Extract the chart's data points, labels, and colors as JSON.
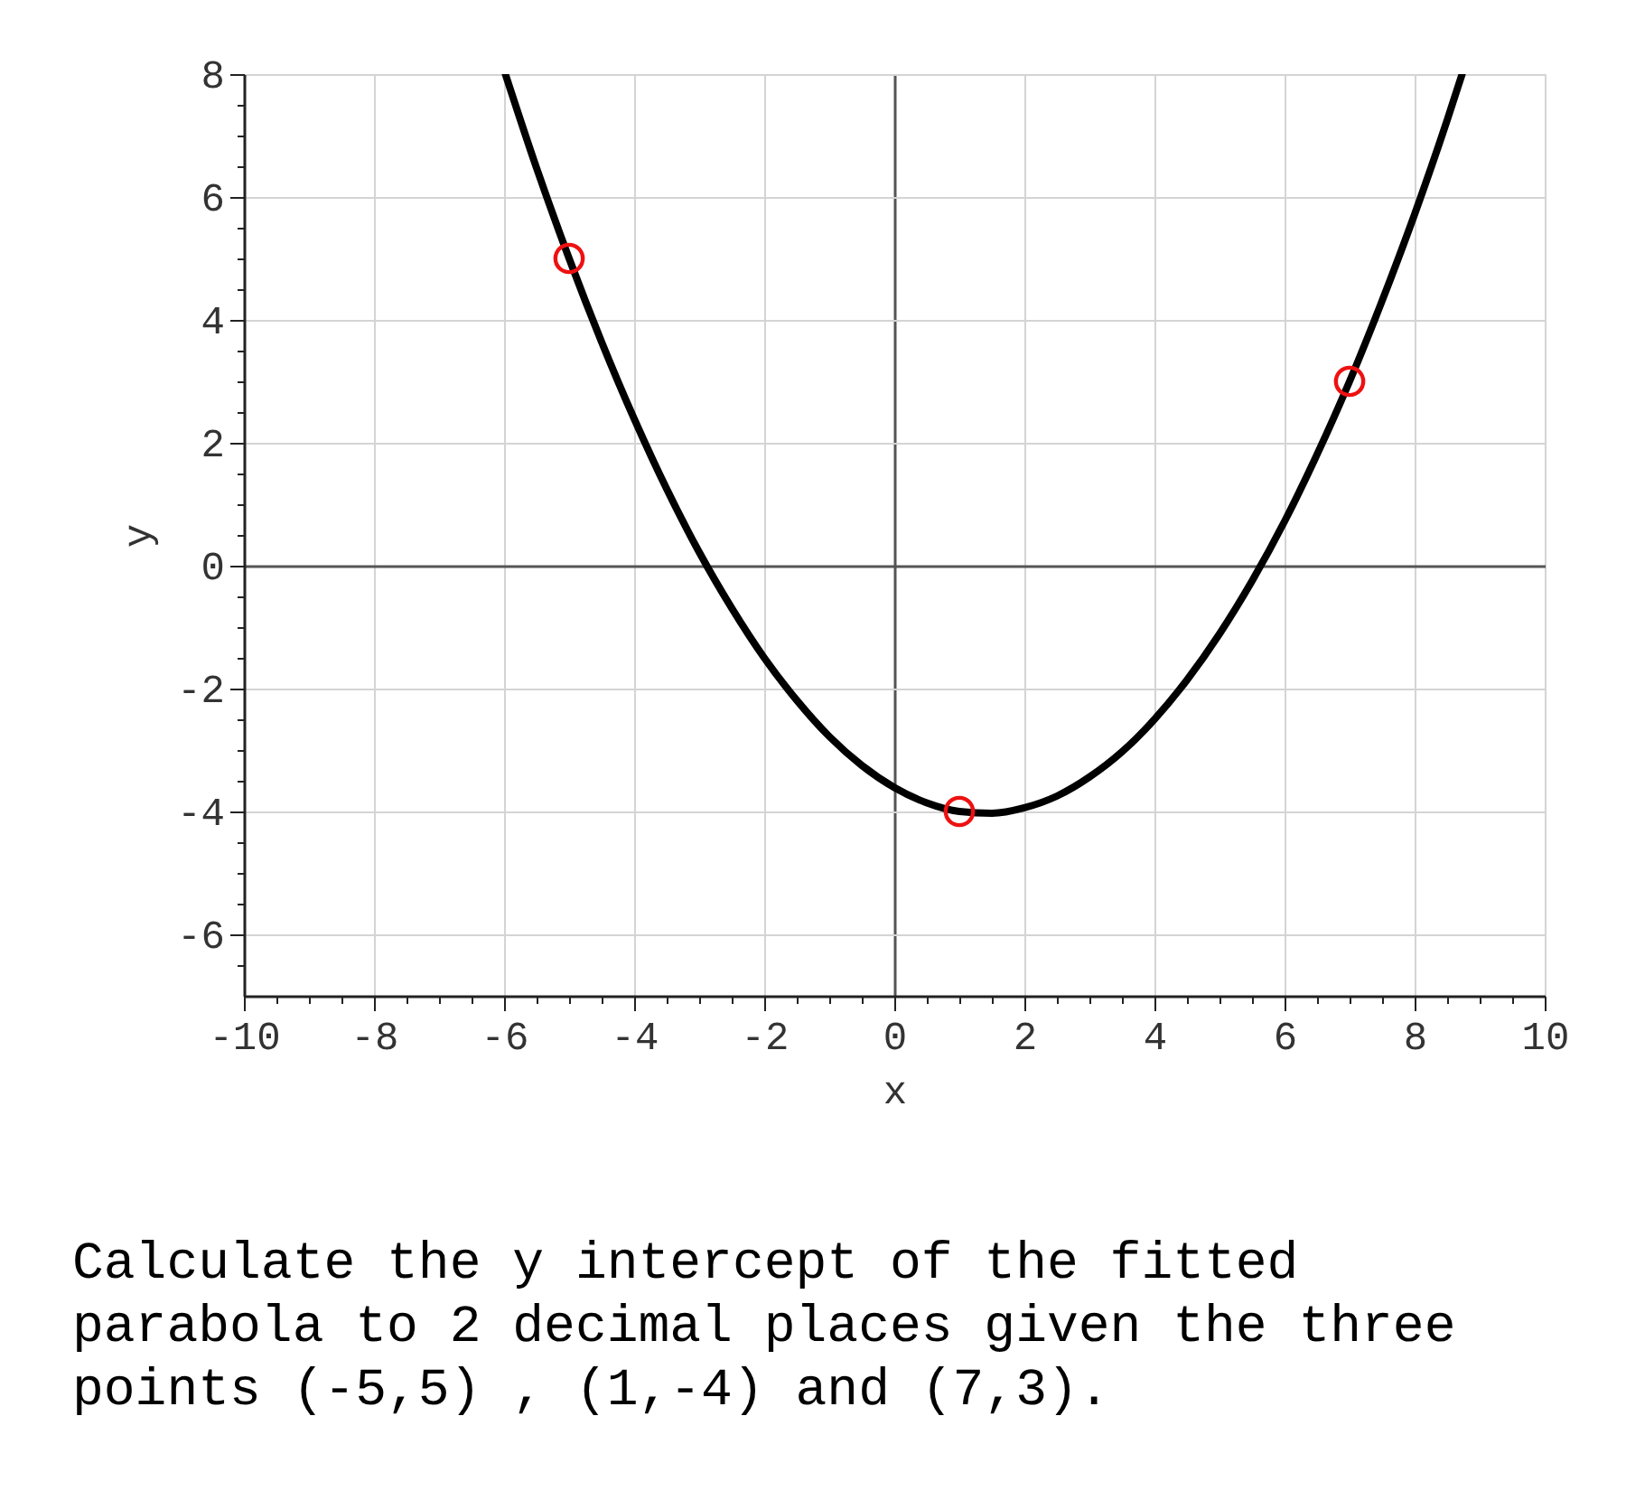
{
  "chart_data": {
    "type": "line",
    "xlabel": "x",
    "ylabel": "y",
    "xlim": [
      -10,
      10
    ],
    "ylim": [
      -7,
      8
    ],
    "xticks": [
      -10,
      {
        "value": -9.5,
        "label": null
      },
      {
        "value": -9,
        "label": null
      },
      {
        "value": -8.5,
        "label": null
      },
      -8,
      {
        "value": -7.5,
        "label": null
      },
      {
        "value": -7,
        "label": null
      },
      {
        "value": -6.5,
        "label": null
      },
      -6,
      {
        "value": -5.5,
        "label": null
      },
      {
        "value": -5,
        "label": null
      },
      {
        "value": -4.5,
        "label": null
      },
      -4,
      {
        "value": -3.5,
        "label": null
      },
      {
        "value": -3,
        "label": null
      },
      {
        "value": -2.5,
        "label": null
      },
      -2,
      {
        "value": -1.5,
        "label": null
      },
      {
        "value": -1,
        "label": null
      },
      {
        "value": -0.5,
        "label": null
      },
      0,
      {
        "value": 0.5,
        "label": null
      },
      {
        "value": 1,
        "label": null
      },
      {
        "value": 1.5,
        "label": null
      },
      2,
      {
        "value": 2.5,
        "label": null
      },
      {
        "value": 3,
        "label": null
      },
      {
        "value": 3.5,
        "label": null
      },
      4,
      {
        "value": 4.5,
        "label": null
      },
      {
        "value": 5,
        "label": null
      },
      {
        "value": 5.5,
        "label": null
      },
      6,
      {
        "value": 6.5,
        "label": null
      },
      {
        "value": 7,
        "label": null
      },
      {
        "value": 7.5,
        "label": null
      },
      8,
      {
        "value": 8.5,
        "label": null
      },
      {
        "value": 9,
        "label": null
      },
      {
        "value": 9.5,
        "label": null
      },
      10
    ],
    "yticks": [
      {
        "value": -6.5,
        "label": null
      },
      -6,
      {
        "value": -5.5,
        "label": null
      },
      {
        "value": -5,
        "label": null
      },
      {
        "value": -4.5,
        "label": null
      },
      -4,
      {
        "value": -3.5,
        "label": null
      },
      {
        "value": -3,
        "label": null
      },
      {
        "value": -2.5,
        "label": null
      },
      -2,
      {
        "value": -1.5,
        "label": null
      },
      {
        "value": -1,
        "label": null
      },
      {
        "value": -0.5,
        "label": null
      },
      0,
      {
        "value": 0.5,
        "label": null
      },
      {
        "value": 1,
        "label": null
      },
      {
        "value": 1.5,
        "label": null
      },
      2,
      {
        "value": 2.5,
        "label": null
      },
      {
        "value": 3,
        "label": null
      },
      {
        "value": 3.5,
        "label": null
      },
      4,
      {
        "value": 4.5,
        "label": null
      },
      {
        "value": 5,
        "label": null
      },
      {
        "value": 5.5,
        "label": null
      },
      6,
      {
        "value": 6.5,
        "label": null
      },
      {
        "value": 7,
        "label": null
      },
      {
        "value": 7.5,
        "label": null
      },
      8
    ],
    "grid": true,
    "series": [
      {
        "color": "#000000",
        "line_style": "solid",
        "x": [
          -5.98,
          -5.5,
          -5,
          -4.5,
          -4,
          -3.5,
          -3,
          -2.5,
          -2,
          -1.5,
          -1,
          -0.5,
          0,
          0.5,
          1,
          1.5,
          2,
          2.5,
          3,
          3.5,
          4,
          4.5,
          5,
          5.5,
          6,
          6.5,
          7,
          7.5,
          8,
          8.5,
          8.73
        ],
        "values": [
          8,
          6.47,
          5,
          3.64,
          2.39,
          1.25,
          0.22,
          -0.69,
          -1.5,
          -2.19,
          -2.78,
          -3.25,
          -3.61,
          -3.86,
          -4,
          -4.03,
          -3.94,
          -3.75,
          -3.44,
          -3.03,
          -2.5,
          -1.86,
          -1.11,
          -0.25,
          0.72,
          1.81,
          3,
          4.31,
          5.72,
          7.25,
          8
        ]
      },
      {
        "type": "scatter",
        "color": "#ee1111",
        "marker": "circle",
        "x": [
          -5,
          1,
          7
        ],
        "values": [
          5,
          -4,
          3
        ]
      }
    ],
    "annotations": [
      "Calculate the y intercept of the fitted parabola to 2 decimal places given the three points (-5,5) , (1,-4) and (7,3)."
    ]
  }
}
